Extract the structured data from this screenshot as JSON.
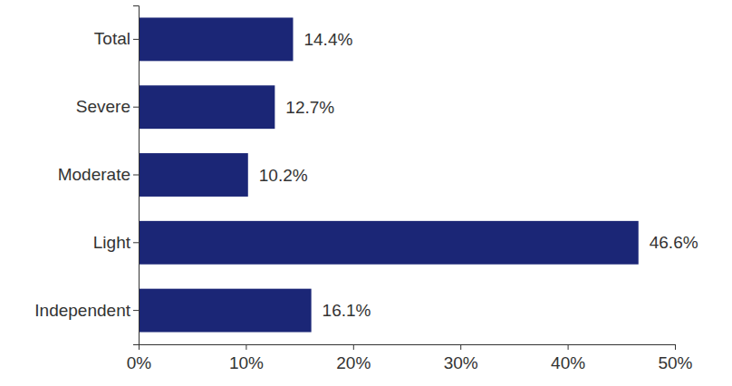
{
  "chart_data": {
    "type": "bar",
    "orientation": "horizontal",
    "categories": [
      "Total",
      "Severe",
      "Moderate",
      "Light",
      "Independent"
    ],
    "values": [
      14.4,
      12.7,
      10.2,
      46.6,
      16.1
    ],
    "value_labels": [
      "14.4%",
      "12.7%",
      "10.2%",
      "46.6%",
      "16.1%"
    ],
    "data_labels": true,
    "color": "#1b2676",
    "xlim": [
      0,
      50
    ],
    "xticks": [
      {
        "value": 0,
        "label": "0%"
      },
      {
        "value": 10,
        "label": "10%"
      },
      {
        "value": 20,
        "label": "20%"
      },
      {
        "value": 30,
        "label": "30%"
      },
      {
        "value": 40,
        "label": "40%"
      },
      {
        "value": 50,
        "label": "50%"
      }
    ],
    "grid": false
  }
}
